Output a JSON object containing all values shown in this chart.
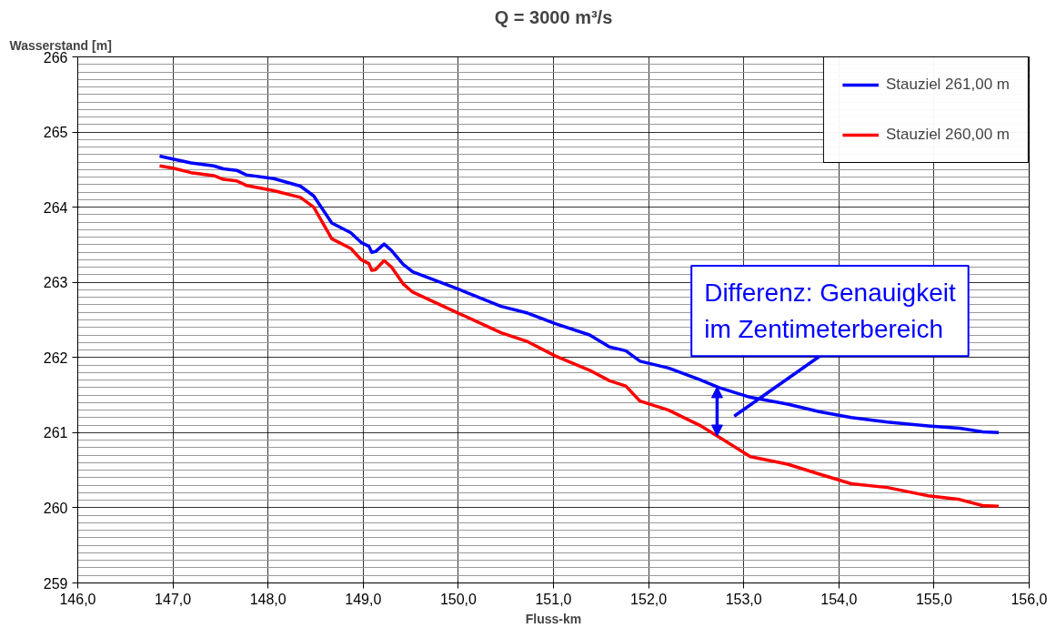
{
  "chart_data": {
    "type": "line",
    "title": "Q = 3000 m³/s",
    "xlabel": "Fluss-km",
    "ylabel": "Wasserstand [m]",
    "xlim": [
      146,
      156
    ],
    "ylim": [
      259,
      266
    ],
    "xticks": [
      {
        "value": 146,
        "label": "146,0"
      },
      {
        "value": 147,
        "label": "147,0"
      },
      {
        "value": 148,
        "label": "148,0"
      },
      {
        "value": 149,
        "label": "149,0"
      },
      {
        "value": 150,
        "label": "150,0"
      },
      {
        "value": 151,
        "label": "151,0"
      },
      {
        "value": 152,
        "label": "152,0"
      },
      {
        "value": 153,
        "label": "153,0"
      },
      {
        "value": 154,
        "label": "154,0"
      },
      {
        "value": 155,
        "label": "155,0"
      },
      {
        "value": 156,
        "label": "156,0"
      }
    ],
    "yticks": [
      259,
      260,
      261,
      262,
      263,
      264,
      265,
      266
    ],
    "grid": true,
    "legend": "top right",
    "marker": "none",
    "line_style": "solid",
    "x": [
      146.86,
      147.0,
      147.19,
      147.43,
      147.53,
      147.67,
      147.77,
      148.06,
      148.34,
      148.48,
      148.67,
      148.87,
      148.98,
      149.06,
      149.09,
      149.13,
      149.22,
      149.3,
      149.42,
      149.52,
      150.0,
      150.45,
      150.73,
      151.02,
      151.38,
      151.59,
      151.76,
      151.91,
      152.21,
      152.55,
      152.74,
      153.07,
      153.46,
      153.79,
      154.13,
      154.51,
      154.94,
      155.27,
      155.51,
      155.68
    ],
    "series": [
      {
        "name": "Stauziel 261,00 m",
        "color": "#0000ff",
        "values": [
          264.68,
          264.64,
          264.59,
          264.55,
          264.51,
          264.49,
          264.43,
          264.38,
          264.28,
          264.15,
          263.79,
          263.66,
          263.53,
          263.48,
          263.4,
          263.41,
          263.51,
          263.42,
          263.24,
          263.14,
          262.91,
          262.68,
          262.59,
          262.45,
          262.3,
          262.14,
          262.09,
          261.95,
          261.86,
          261.7,
          261.6,
          261.47,
          261.38,
          261.28,
          261.2,
          261.14,
          261.09,
          261.06,
          261.01,
          261.0
        ]
      },
      {
        "name": "Stauziel 260,00 m",
        "color": "#ff0000",
        "values": [
          264.55,
          264.52,
          264.46,
          264.42,
          264.37,
          264.35,
          264.29,
          264.22,
          264.13,
          264.0,
          263.58,
          263.45,
          263.3,
          263.25,
          263.16,
          263.17,
          263.29,
          263.2,
          262.98,
          262.87,
          262.59,
          262.33,
          262.21,
          262.02,
          261.83,
          261.69,
          261.62,
          261.42,
          261.3,
          261.09,
          260.94,
          260.68,
          260.58,
          260.45,
          260.32,
          260.27,
          260.16,
          260.11,
          260.03,
          260.02
        ]
      }
    ],
    "annotations": [
      "Differenz: Genauigkeit\nim Zentimeterbereich"
    ]
  }
}
